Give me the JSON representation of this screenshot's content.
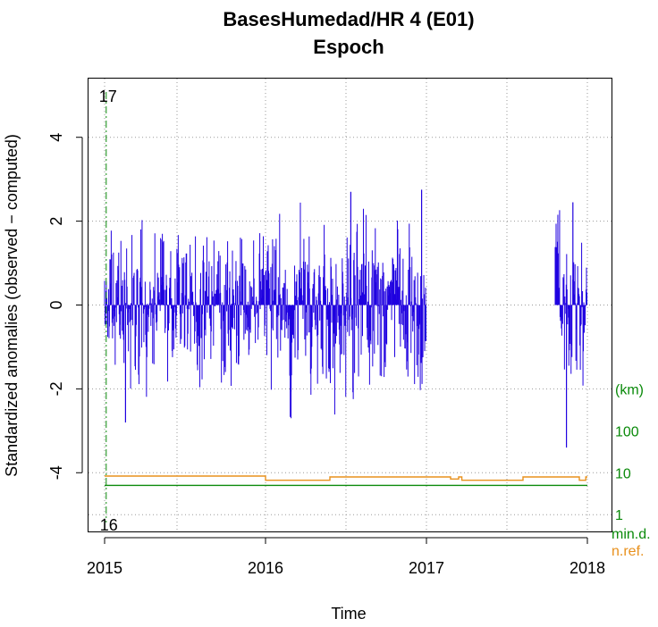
{
  "chart_data": {
    "type": "bar",
    "title": "BasesHumedad/HR   4 (E01)",
    "subtitle": "Espoch",
    "xlabel": "Time",
    "ylabel": "Standardized anomalies (observed − computed)",
    "xlim": [
      2014.9,
      2018.15
    ],
    "ylim": [
      -5.4,
      5.4
    ],
    "x_ticks": [
      {
        "value": 2015,
        "label": "2015"
      },
      {
        "value": 2016,
        "label": "2016"
      },
      {
        "value": 2017,
        "label": "2017"
      },
      {
        "value": 2018,
        "label": "2018"
      }
    ],
    "y_ticks": [
      {
        "value": 4,
        "label": "4"
      },
      {
        "value": 2,
        "label": "2"
      },
      {
        "value": 0,
        "label": "0"
      },
      {
        "value": -2,
        "label": "-2"
      },
      {
        "value": -4,
        "label": "-4"
      }
    ],
    "x_grid": [
      2015,
      2015.45,
      2016,
      2016.5,
      2017,
      2017.5,
      2018
    ],
    "y_grid": [
      4,
      2,
      0,
      -2,
      -4,
      -5
    ],
    "grid": true,
    "anomaly_color": "#1f00e0",
    "anomaly_segments": [
      {
        "start": 2015.0,
        "end": 2016.0,
        "amplitude": 2.3,
        "seed": 11
      },
      {
        "start": 2016.0,
        "end": 2017.0,
        "amplitude": 2.7,
        "seed": 23
      },
      {
        "start": 2017.8,
        "end": 2018.0,
        "amplitude": 2.4,
        "seed": 37
      }
    ],
    "anomaly_extremes": [
      {
        "x": 2015.13,
        "y": -2.8
      },
      {
        "x": 2016.53,
        "y": 2.7
      },
      {
        "x": 2016.97,
        "y": 2.75
      },
      {
        "x": 2017.91,
        "y": 2.45
      },
      {
        "x": 2017.87,
        "y": -3.4
      }
    ],
    "outlier_marker": {
      "x": 2015.01,
      "top_label": "17",
      "bottom_label": "16",
      "color": "#0a8a0a"
    },
    "secondary_axis": {
      "unit_label": "(km)",
      "ticks": [
        {
          "value": 100,
          "label": "100",
          "y": -3
        },
        {
          "value": 10,
          "label": "10",
          "y": -4
        },
        {
          "value": 1,
          "label": "1",
          "y": -5
        }
      ],
      "color": "#0a8a0a"
    },
    "series": [
      {
        "name": "min.d.",
        "color": "#0a8a0a",
        "points": [
          [
            2015.0,
            -4.3
          ],
          [
            2018.0,
            -4.3
          ]
        ]
      },
      {
        "name": "n.ref.",
        "color": "#e8901c",
        "points": [
          [
            2015.0,
            -4.08
          ],
          [
            2016.0,
            -4.08
          ],
          [
            2016.0,
            -4.18
          ],
          [
            2016.4,
            -4.18
          ],
          [
            2016.4,
            -4.1
          ],
          [
            2017.15,
            -4.1
          ],
          [
            2017.15,
            -4.15
          ],
          [
            2017.2,
            -4.15
          ],
          [
            2017.2,
            -4.1
          ],
          [
            2017.22,
            -4.1
          ],
          [
            2017.22,
            -4.18
          ],
          [
            2017.6,
            -4.18
          ],
          [
            2017.6,
            -4.1
          ],
          [
            2017.95,
            -4.1
          ],
          [
            2017.95,
            -4.18
          ],
          [
            2017.99,
            -4.18
          ],
          [
            2017.99,
            -4.1
          ],
          [
            2018.0,
            -4.1
          ]
        ]
      }
    ]
  }
}
